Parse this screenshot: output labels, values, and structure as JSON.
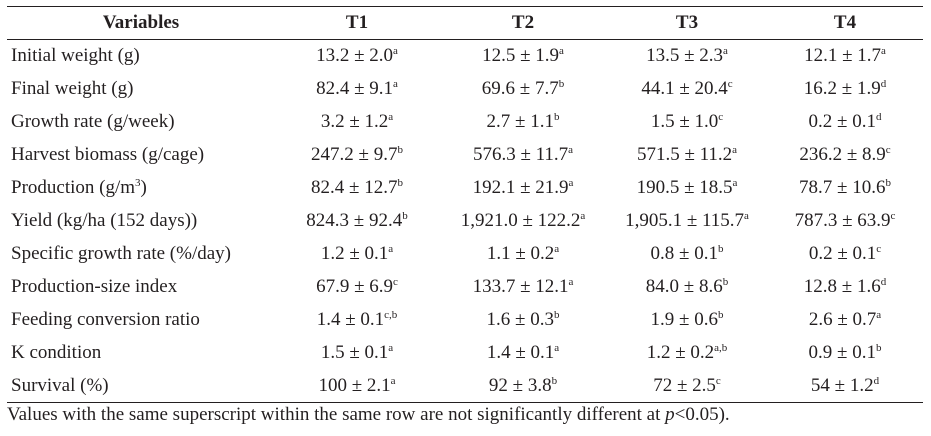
{
  "table": {
    "headers": [
      "Variables",
      "T1",
      "T2",
      "T3",
      "T4"
    ],
    "rows": [
      {
        "label": "Initial weight (g)",
        "cells": [
          {
            "v": "13.2 ± 2.0",
            "s": "a"
          },
          {
            "v": "12.5 ± 1.9",
            "s": "a"
          },
          {
            "v": "13.5 ± 2.3",
            "s": "a"
          },
          {
            "v": "12.1 ± 1.7",
            "s": "a"
          }
        ]
      },
      {
        "label": "Final weight (g)",
        "cells": [
          {
            "v": "82.4 ± 9.1",
            "s": "a"
          },
          {
            "v": "69.6 ± 7.7",
            "s": "b"
          },
          {
            "v": "44.1 ± 20.4",
            "s": "c"
          },
          {
            "v": "16.2 ± 1.9",
            "s": "d"
          }
        ]
      },
      {
        "label": "Growth rate (g/week)",
        "cells": [
          {
            "v": "3.2 ± 1.2",
            "s": "a"
          },
          {
            "v": "2.7 ± 1.1",
            "s": "b"
          },
          {
            "v": "1.5 ± 1.0",
            "s": "c"
          },
          {
            "v": "0.2 ± 0.1",
            "s": "d"
          }
        ]
      },
      {
        "label": "Harvest biomass (g/cage)",
        "cells": [
          {
            "v": "247.2 ± 9.7",
            "s": "b"
          },
          {
            "v": "576.3 ± 11.7",
            "s": "a"
          },
          {
            "v": "571.5 ± 11.2",
            "s": "a"
          },
          {
            "v": "236.2 ± 8.9",
            "s": "c"
          }
        ]
      },
      {
        "label": "Production (g/m",
        "label_sup": "3",
        "label_end": ")",
        "cells": [
          {
            "v": "82.4 ± 12.7",
            "s": "b"
          },
          {
            "v": "192.1 ± 21.9",
            "s": "a"
          },
          {
            "v": "190.5 ± 18.5",
            "s": "a"
          },
          {
            "v": "78.7 ± 10.6",
            "s": "b"
          }
        ]
      },
      {
        "label": "Yield (kg/ha (152 days))",
        "cells": [
          {
            "v": "824.3 ± 92.4",
            "s": "b"
          },
          {
            "v": "1,921.0 ± 122.2",
            "s": "a"
          },
          {
            "v": "1,905.1 ± 115.7",
            "s": "a"
          },
          {
            "v": "787.3 ± 63.9",
            "s": "c"
          }
        ]
      },
      {
        "label": "Specific growth rate (%/day)",
        "cells": [
          {
            "v": "1.2 ± 0.1",
            "s": "a"
          },
          {
            "v": "1.1 ± 0.2",
            "s": "a"
          },
          {
            "v": "0.8 ± 0.1",
            "s": "b"
          },
          {
            "v": "0.2 ± 0.1",
            "s": "c"
          }
        ]
      },
      {
        "label": "Production-size index",
        "cells": [
          {
            "v": "67.9 ± 6.9",
            "s": "c"
          },
          {
            "v": "133.7 ± 12.1",
            "s": "a"
          },
          {
            "v": "84.0 ± 8.6",
            "s": "b"
          },
          {
            "v": "12.8 ± 1.6",
            "s": "d"
          }
        ]
      },
      {
        "label": "Feeding conversion ratio",
        "cells": [
          {
            "v": "1.4 ± 0.1",
            "s": "c,b"
          },
          {
            "v": "1.6 ± 0.3",
            "s": "b"
          },
          {
            "v": "1.9 ± 0.6",
            "s": "b"
          },
          {
            "v": "2.6 ± 0.7",
            "s": "a"
          }
        ]
      },
      {
        "label": "K condition",
        "cells": [
          {
            "v": "1.5 ± 0.1",
            "s": "a"
          },
          {
            "v": "1.4 ± 0.1",
            "s": "a"
          },
          {
            "v": "1.2 ± 0.2",
            "s": "a,b"
          },
          {
            "v": "0.9 ± 0.1",
            "s": "b"
          }
        ]
      },
      {
        "label": "Survival (%)",
        "cells": [
          {
            "v": "100 ± 2.1",
            "s": "a"
          },
          {
            "v": "92 ± 3.8",
            "s": "b"
          },
          {
            "v": "72 ± 2.5",
            "s": "c"
          },
          {
            "v": "54 ± 1.2",
            "s": "d"
          }
        ]
      }
    ]
  },
  "footnote": {
    "before": "Values with the same superscript within the same row are not significantly different at ",
    "italic": "p",
    "after": "<0.05)."
  }
}
